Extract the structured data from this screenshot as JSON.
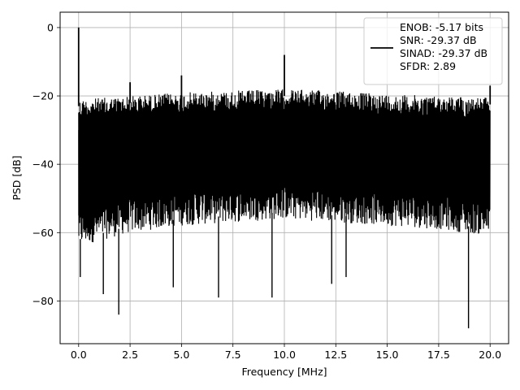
{
  "chart_data": {
    "type": "line",
    "title": "",
    "xlabel": "Frequency [MHz]",
    "ylabel": "PSD [dB]",
    "xlim": [
      -0.9,
      20.9
    ],
    "ylim": [
      -92.5,
      4.5
    ],
    "xticks": [
      0.0,
      2.5,
      5.0,
      7.5,
      10.0,
      12.5,
      15.0,
      17.5,
      20.0
    ],
    "xtick_labels": [
      "0.0",
      "2.5",
      "5.0",
      "7.5",
      "10.0",
      "12.5",
      "15.0",
      "17.5",
      "20.0"
    ],
    "yticks": [
      0,
      -20,
      -40,
      -60,
      -80
    ],
    "ytick_labels": [
      "0",
      "−20",
      "−40",
      "−60",
      "−80"
    ],
    "grid": true,
    "legend_position": "top-right",
    "line_color": "#000000",
    "series": [
      {
        "legend_lines": [
          "ENOB: -5.17 bits",
          "SNR: -29.37 dB",
          "SINAD: -29.37 dB",
          "SFDR: 2.89"
        ],
        "noise_band": {
          "x_start": 0.0,
          "x_end": 20.0,
          "upper_envelope": [
            [
              0.0,
              -21
            ],
            [
              2.5,
              -20
            ],
            [
              5.0,
              -19
            ],
            [
              7.5,
              -18.5
            ],
            [
              10.0,
              -18
            ],
            [
              12.5,
              -18.5
            ],
            [
              15.0,
              -19.5
            ],
            [
              17.5,
              -20
            ],
            [
              20.0,
              -20.5
            ]
          ],
          "lower_envelope": [
            [
              0.0,
              -64
            ],
            [
              2.5,
              -60
            ],
            [
              5.0,
              -58
            ],
            [
              7.5,
              -57
            ],
            [
              10.0,
              -56
            ],
            [
              12.5,
              -57
            ],
            [
              15.0,
              -58
            ],
            [
              17.5,
              -59
            ],
            [
              20.0,
              -61
            ]
          ]
        },
        "peaks": [
          {
            "x": 0.0,
            "y": 0.0
          },
          {
            "x": 2.5,
            "y": -16.0
          },
          {
            "x": 5.0,
            "y": -14.0
          },
          {
            "x": 10.0,
            "y": -8.0
          },
          {
            "x": 20.0,
            "y": -17.0
          }
        ],
        "dips": [
          {
            "x": 0.08,
            "y": -73.0
          },
          {
            "x": 1.2,
            "y": -78.0
          },
          {
            "x": 1.95,
            "y": -84.0
          },
          {
            "x": 4.6,
            "y": -76.0
          },
          {
            "x": 6.8,
            "y": -79.0
          },
          {
            "x": 9.4,
            "y": -79.0
          },
          {
            "x": 12.3,
            "y": -75.0
          },
          {
            "x": 13.0,
            "y": -73.0
          },
          {
            "x": 18.95,
            "y": -88.0
          }
        ]
      }
    ]
  }
}
